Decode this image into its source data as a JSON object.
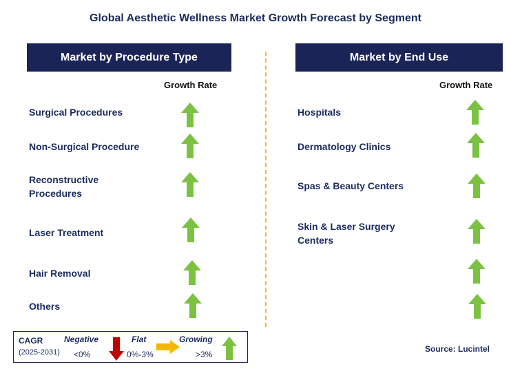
{
  "title": "Global Aesthetic Wellness Market Growth Forecast by Segment",
  "left_panel": {
    "header": "Market by Procedure Type",
    "growth_label": "Growth Rate",
    "items": [
      {
        "label": "Surgical Procedures",
        "trend": "growing"
      },
      {
        "label": "Non-Surgical Procedure",
        "trend": "growing"
      },
      {
        "label": "Reconstructive Procedures",
        "trend": "growing"
      },
      {
        "label": "Laser Treatment",
        "trend": "growing"
      },
      {
        "label": "Hair Removal",
        "trend": "growing"
      },
      {
        "label": "Others",
        "trend": "growing"
      }
    ]
  },
  "right_panel": {
    "header": "Market by End Use",
    "growth_label": "Growth Rate",
    "items": [
      {
        "label": "Hospitals",
        "trend": "growing"
      },
      {
        "label": "Dermatology Clinics",
        "trend": "growing"
      },
      {
        "label": "Spas & Beauty Centers",
        "trend": "growing"
      },
      {
        "label": "Skin & Laser Surgery Centers",
        "trend": "growing"
      },
      {
        "label": "",
        "trend": "growing"
      },
      {
        "label": "",
        "trend": "growing"
      }
    ]
  },
  "legend": {
    "cagr_label": "CAGR",
    "period": "(2025-2031)",
    "negative_label": "Negative",
    "negative_range": "<0%",
    "flat_label": "Flat",
    "flat_range": "0%-3%",
    "growing_label": "Growing",
    "growing_range": ">3%"
  },
  "source": "Source: Lucintel",
  "colors": {
    "header_bg": "#1a2457",
    "growing_arrow": "#7cc242",
    "negative_arrow": "#c00000",
    "flat_arrow": "#f5b800",
    "divider": "#f5b335"
  }
}
